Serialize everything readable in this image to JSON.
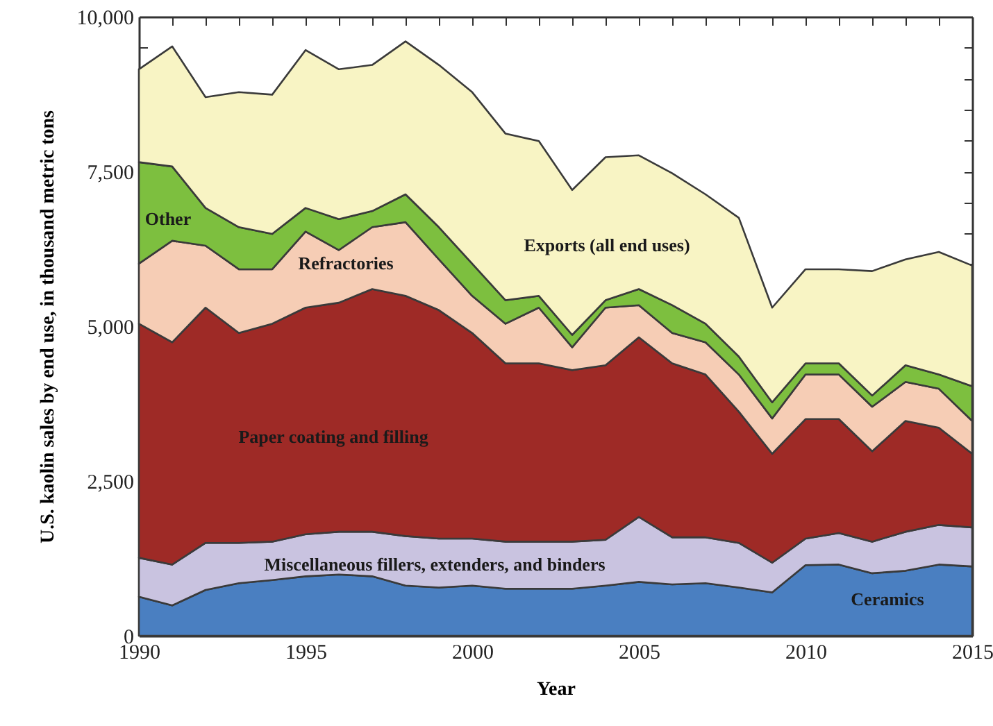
{
  "chart_data": {
    "type": "area",
    "stacked": true,
    "xlabel": "Year",
    "ylabel": "U.S. kaolin sales by end use, in thousand metric tons",
    "x": [
      1990,
      1991,
      1992,
      1993,
      1994,
      1995,
      1996,
      1997,
      1998,
      1999,
      2000,
      2001,
      2002,
      2003,
      2004,
      2005,
      2006,
      2007,
      2008,
      2009,
      2010,
      2011,
      2012,
      2013,
      2014,
      2015
    ],
    "xlim": [
      1990,
      2015
    ],
    "xticks": [
      1990,
      {
        "value": 1991,
        "label": null
      },
      {
        "value": 1992,
        "label": null
      },
      {
        "value": 1993,
        "label": null
      },
      {
        "value": 1994,
        "label": null
      },
      1995,
      {
        "value": 1996,
        "label": null
      },
      {
        "value": 1997,
        "label": null
      },
      {
        "value": 1998,
        "label": null
      },
      {
        "value": 1999,
        "label": null
      },
      2000,
      {
        "value": 2001,
        "label": null
      },
      {
        "value": 2002,
        "label": null
      },
      {
        "value": 2003,
        "label": null
      },
      {
        "value": 2004,
        "label": null
      },
      2005,
      {
        "value": 2006,
        "label": null
      },
      {
        "value": 2007,
        "label": null
      },
      {
        "value": 2008,
        "label": null
      },
      {
        "value": 2009,
        "label": null
      },
      2010,
      {
        "value": 2011,
        "label": null
      },
      {
        "value": 2012,
        "label": null
      },
      {
        "value": 2013,
        "label": null
      },
      {
        "value": 2014,
        "label": null
      },
      2015
    ],
    "ylim": [
      0,
      10000
    ],
    "yticks": [
      {
        "value": 0,
        "label": "0"
      },
      {
        "value": 500,
        "label": null
      },
      {
        "value": 1000,
        "label": null
      },
      {
        "value": 1500,
        "label": null
      },
      {
        "value": 2000,
        "label": null
      },
      {
        "value": 2500,
        "label": "2,500"
      },
      {
        "value": 3000,
        "label": null
      },
      {
        "value": 3500,
        "label": null
      },
      {
        "value": 4000,
        "label": null
      },
      {
        "value": 4500,
        "label": null
      },
      {
        "value": 5000,
        "label": "5,000"
      },
      {
        "value": 5500,
        "label": null
      },
      {
        "value": 6000,
        "label": null
      },
      {
        "value": 6500,
        "label": null
      },
      {
        "value": 7000,
        "label": null
      },
      {
        "value": 7500,
        "label": "7,500"
      },
      {
        "value": 8000,
        "label": null
      },
      {
        "value": 8500,
        "label": null
      },
      {
        "value": 9000,
        "label": null
      },
      {
        "value": 9500,
        "label": null
      },
      {
        "value": 10000,
        "label": "10,000"
      }
    ],
    "series": [
      {
        "name": "Ceramics",
        "color": "#4a7fc1",
        "values": [
          630,
          490,
          740,
          850,
          900,
          960,
          990,
          960,
          810,
          780,
          810,
          760,
          760,
          760,
          810,
          870,
          830,
          850,
          780,
          700,
          1140,
          1150,
          1010,
          1050,
          1150,
          1120
        ]
      },
      {
        "name": "Miscellaneous fillers, extenders, and binders",
        "color": "#c9c3e0",
        "values": [
          630,
          660,
          760,
          650,
          620,
          680,
          690,
          720,
          800,
          790,
          760,
          760,
          760,
          760,
          740,
          1050,
          760,
          740,
          720,
          480,
          430,
          510,
          510,
          630,
          640,
          630
        ]
      },
      {
        "name": "Paper coating and filling",
        "color": "#9e2a26",
        "values": [
          3780,
          3590,
          3800,
          3390,
          3520,
          3660,
          3700,
          3920,
          3880,
          3690,
          3320,
          2880,
          2880,
          2770,
          2820,
          2900,
          2810,
          2630,
          2120,
          1760,
          1930,
          1840,
          1460,
          1790,
          1570,
          1190
        ]
      },
      {
        "name": "Refractories",
        "color": "#f6cdb5",
        "values": [
          970,
          1640,
          1000,
          1030,
          880,
          1230,
          850,
          1000,
          1190,
          820,
          600,
          640,
          900,
          370,
          930,
          520,
          490,
          520,
          600,
          570,
          720,
          720,
          720,
          630,
          630,
          530
        ]
      },
      {
        "name": "Other",
        "color": "#7dbf3f",
        "values": [
          1640,
          1200,
          610,
          680,
          570,
          380,
          500,
          260,
          450,
          520,
          520,
          380,
          190,
          200,
          120,
          260,
          450,
          300,
          290,
          260,
          180,
          180,
          180,
          270,
          230,
          560
        ]
      },
      {
        "name": "Exports (all end uses)",
        "color": "#f8f4c4",
        "values": [
          1500,
          1940,
          1790,
          2180,
          2250,
          2550,
          2420,
          2360,
          2470,
          2620,
          2770,
          2690,
          2500,
          2340,
          2310,
          2160,
          2130,
          2090,
          2240,
          1530,
          1520,
          1520,
          2010,
          1710,
          1980,
          1950
        ]
      }
    ],
    "grid": false,
    "legend": false
  }
}
